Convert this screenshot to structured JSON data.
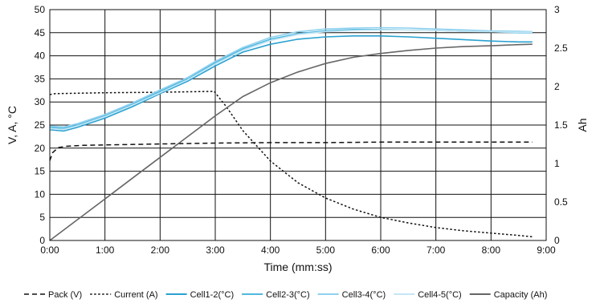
{
  "chart_data": {
    "type": "line",
    "xlabel": "Time (mm:ss)",
    "ylabel": "V, A, °C",
    "y2label": "Ah",
    "xlim": [
      0,
      9
    ],
    "ylim": [
      0,
      50
    ],
    "y2lim": [
      0,
      3
    ],
    "grid": true,
    "legend_position": "bottom",
    "x_ticks": [
      "0:00",
      "1:00",
      "2:00",
      "3:00",
      "4:00",
      "5:00",
      "6:00",
      "7:00",
      "8:00",
      "9:00"
    ],
    "y_ticks": [
      "0",
      "5",
      "10",
      "15",
      "20",
      "25",
      "30",
      "35",
      "40",
      "45",
      "50"
    ],
    "y2_ticks": [
      "0",
      "0.5",
      "1",
      "1.5",
      "2",
      "2.5",
      "3"
    ],
    "series": [
      {
        "name": "Pack (V)",
        "axis": "left",
        "style": "dash",
        "color": "#111111",
        "x": [
          0,
          0.05,
          0.15,
          0.3,
          0.6,
          1,
          2,
          3,
          4,
          5,
          6,
          7,
          8,
          8.75
        ],
        "y": [
          17.3,
          19.0,
          20.1,
          20.4,
          20.6,
          20.7,
          20.9,
          21.1,
          21.2,
          21.2,
          21.3,
          21.3,
          21.3,
          21.3
        ]
      },
      {
        "name": "Current (A)",
        "axis": "left",
        "style": "dot",
        "color": "#111111",
        "x": [
          0,
          0.1,
          0.5,
          1,
          2,
          2.5,
          2.98,
          3.2,
          3.5,
          4,
          4.5,
          5,
          5.5,
          6,
          6.5,
          7,
          7.5,
          8,
          8.5,
          8.75
        ],
        "y": [
          31.6,
          31.8,
          31.9,
          32.0,
          32.1,
          32.2,
          32.3,
          29.0,
          23.8,
          17.2,
          12.5,
          9.2,
          6.8,
          5.0,
          3.8,
          2.8,
          2.1,
          1.6,
          1.1,
          0.8
        ]
      },
      {
        "name": "Cell1-2(°C)",
        "axis": "left",
        "style": "solid",
        "color": "#2aa1d0",
        "x": [
          0,
          0.25,
          0.5,
          1,
          1.5,
          2,
          2.5,
          3,
          3.5,
          4,
          4.5,
          5,
          5.5,
          6,
          6.5,
          7,
          7.5,
          8,
          8.5,
          8.75
        ],
        "y": [
          24.0,
          23.7,
          24.5,
          26.5,
          29.0,
          31.8,
          34.5,
          37.8,
          40.8,
          42.5,
          43.6,
          44.1,
          44.3,
          44.3,
          44.1,
          43.8,
          43.5,
          43.2,
          43.0,
          43.0
        ]
      },
      {
        "name": "Cell2-3(°C)",
        "axis": "left",
        "style": "solid",
        "color": "#4fb8e0",
        "x": [
          0,
          0.25,
          0.5,
          1,
          1.5,
          2,
          2.5,
          3,
          3.5,
          4,
          4.5,
          5,
          5.5,
          6,
          6.5,
          7,
          7.5,
          8,
          8.5,
          8.75
        ],
        "y": [
          24.5,
          24.3,
          25.0,
          27.0,
          29.5,
          32.3,
          35.0,
          38.5,
          41.5,
          43.6,
          44.8,
          45.4,
          45.7,
          45.7,
          45.6,
          45.5,
          45.3,
          45.2,
          45.0,
          45.0
        ]
      },
      {
        "name": "Cell3-4(°C)",
        "axis": "left",
        "style": "solid",
        "color": "#8fd0ee",
        "x": [
          0,
          0.25,
          0.5,
          1,
          1.5,
          2,
          2.5,
          3,
          3.5,
          4,
          4.5,
          5,
          5.5,
          6,
          6.5,
          7,
          7.5,
          8,
          8.5,
          8.75
        ],
        "y": [
          24.8,
          24.6,
          25.3,
          27.3,
          29.8,
          32.6,
          35.3,
          38.8,
          41.8,
          44.0,
          45.2,
          45.8,
          46.0,
          46.1,
          46.0,
          45.8,
          45.6,
          45.4,
          45.3,
          45.2
        ]
      },
      {
        "name": "Cell4-5(°C)",
        "axis": "left",
        "style": "solid",
        "color": "#c4e6f5",
        "x": [
          0,
          0.25,
          0.5,
          1,
          1.5,
          2,
          2.5,
          3,
          3.5,
          4,
          4.5,
          5,
          5.5,
          6,
          6.5,
          7,
          7.5,
          8,
          8.5,
          8.75
        ],
        "y": [
          24.2,
          24.0,
          24.8,
          26.8,
          29.3,
          32.0,
          34.8,
          38.2,
          41.2,
          43.3,
          44.6,
          45.2,
          45.5,
          45.6,
          45.6,
          45.5,
          45.3,
          45.2,
          45.1,
          45.1
        ]
      },
      {
        "name": "Capacity (Ah)",
        "axis": "right",
        "style": "solid",
        "color": "#666666",
        "x": [
          0,
          0.5,
          1,
          1.5,
          2,
          2.5,
          3,
          3.5,
          4,
          4.5,
          5,
          5.5,
          6,
          6.5,
          7,
          7.5,
          8,
          8.5,
          8.75
        ],
        "y": [
          0,
          0.27,
          0.54,
          0.81,
          1.08,
          1.35,
          1.62,
          1.87,
          2.05,
          2.19,
          2.3,
          2.38,
          2.43,
          2.47,
          2.5,
          2.52,
          2.53,
          2.545,
          2.55
        ]
      }
    ]
  }
}
